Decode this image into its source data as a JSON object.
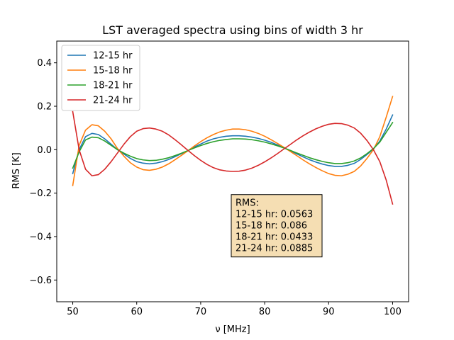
{
  "chart_data": {
    "type": "line",
    "title": "LST averaged spectra using bins of width 3 hr",
    "xlabel": "ν [MHz]",
    "ylabel": "RMS [K]",
    "xlim": [
      47.5,
      102.5
    ],
    "ylim": [
      -0.7,
      0.5
    ],
    "xticks": [
      50,
      60,
      70,
      80,
      90,
      100
    ],
    "yticks": [
      -0.6,
      -0.4,
      -0.2,
      0.0,
      0.2,
      0.4
    ],
    "xtick_labels": [
      "50",
      "60",
      "70",
      "80",
      "90",
      "100"
    ],
    "ytick_labels": [
      "−0.6",
      "−0.4",
      "−0.2",
      "0.0",
      "0.2",
      "0.4"
    ],
    "grid": false,
    "legend_position": "upper-left",
    "x": [
      50,
      51,
      52,
      53,
      54,
      55,
      56,
      57,
      58,
      59,
      60,
      61,
      62,
      63,
      64,
      65,
      66,
      67,
      68,
      69,
      70,
      71,
      72,
      73,
      74,
      75,
      76,
      77,
      78,
      79,
      80,
      81,
      82,
      83,
      84,
      85,
      86,
      87,
      88,
      89,
      90,
      91,
      92,
      93,
      94,
      95,
      96,
      97,
      98,
      99,
      100
    ],
    "series": [
      {
        "name": "12-15 hr",
        "color": "#1f77b4",
        "values": [
          -0.11,
          0.0,
          0.06,
          0.075,
          0.07,
          0.05,
          0.025,
          0.0,
          -0.02,
          -0.04,
          -0.055,
          -0.062,
          -0.065,
          -0.062,
          -0.055,
          -0.045,
          -0.032,
          -0.018,
          -0.005,
          0.012,
          0.026,
          0.04,
          0.05,
          0.057,
          0.062,
          0.064,
          0.064,
          0.062,
          0.058,
          0.052,
          0.044,
          0.034,
          0.022,
          0.009,
          -0.005,
          -0.019,
          -0.033,
          -0.046,
          -0.057,
          -0.066,
          -0.073,
          -0.077,
          -0.077,
          -0.072,
          -0.063,
          -0.045,
          -0.022,
          0.003,
          0.04,
          0.095,
          0.16
        ]
      },
      {
        "name": "15-18 hr",
        "color": "#ff7f0e",
        "values": [
          -0.165,
          0.02,
          0.09,
          0.115,
          0.11,
          0.085,
          0.05,
          0.005,
          -0.03,
          -0.06,
          -0.08,
          -0.092,
          -0.095,
          -0.09,
          -0.08,
          -0.065,
          -0.046,
          -0.026,
          -0.005,
          0.017,
          0.037,
          0.055,
          0.07,
          0.082,
          0.09,
          0.095,
          0.095,
          0.092,
          0.085,
          0.075,
          0.062,
          0.046,
          0.029,
          0.011,
          -0.008,
          -0.027,
          -0.047,
          -0.065,
          -0.082,
          -0.097,
          -0.11,
          -0.118,
          -0.12,
          -0.113,
          -0.1,
          -0.075,
          -0.04,
          0.0,
          0.06,
          0.15,
          0.245
        ]
      },
      {
        "name": "18-21 hr",
        "color": "#2ca02c",
        "values": [
          -0.085,
          -0.01,
          0.045,
          0.058,
          0.055,
          0.04,
          0.02,
          0.0,
          -0.016,
          -0.03,
          -0.041,
          -0.047,
          -0.05,
          -0.049,
          -0.044,
          -0.037,
          -0.027,
          -0.016,
          -0.004,
          0.008,
          0.019,
          0.029,
          0.037,
          0.043,
          0.047,
          0.05,
          0.05,
          0.049,
          0.046,
          0.041,
          0.035,
          0.027,
          0.018,
          0.008,
          -0.003,
          -0.015,
          -0.026,
          -0.037,
          -0.046,
          -0.054,
          -0.06,
          -0.064,
          -0.064,
          -0.06,
          -0.052,
          -0.038,
          -0.018,
          0.005,
          0.035,
          0.08,
          0.125
        ]
      },
      {
        "name": "21-24 hr",
        "color": "#d62728",
        "values": [
          0.175,
          0.0,
          -0.09,
          -0.12,
          -0.115,
          -0.09,
          -0.055,
          -0.015,
          0.025,
          0.06,
          0.085,
          0.097,
          0.1,
          0.095,
          0.085,
          0.068,
          0.046,
          0.022,
          -0.003,
          -0.027,
          -0.049,
          -0.068,
          -0.083,
          -0.093,
          -0.098,
          -0.1,
          -0.099,
          -0.094,
          -0.085,
          -0.072,
          -0.056,
          -0.038,
          -0.018,
          0.003,
          0.024,
          0.045,
          0.064,
          0.081,
          0.096,
          0.108,
          0.117,
          0.121,
          0.12,
          0.113,
          0.1,
          0.076,
          0.042,
          0.0,
          -0.055,
          -0.14,
          -0.25
        ]
      }
    ],
    "annotation": {
      "lines": [
        "RMS:",
        "12-15 hr: 0.0563",
        "15-18 hr: 0.086",
        "18-21 hr: 0.0433",
        "21-24 hr: 0.0885"
      ],
      "background": "#f5deb3",
      "x": 75,
      "y": -0.21
    }
  }
}
